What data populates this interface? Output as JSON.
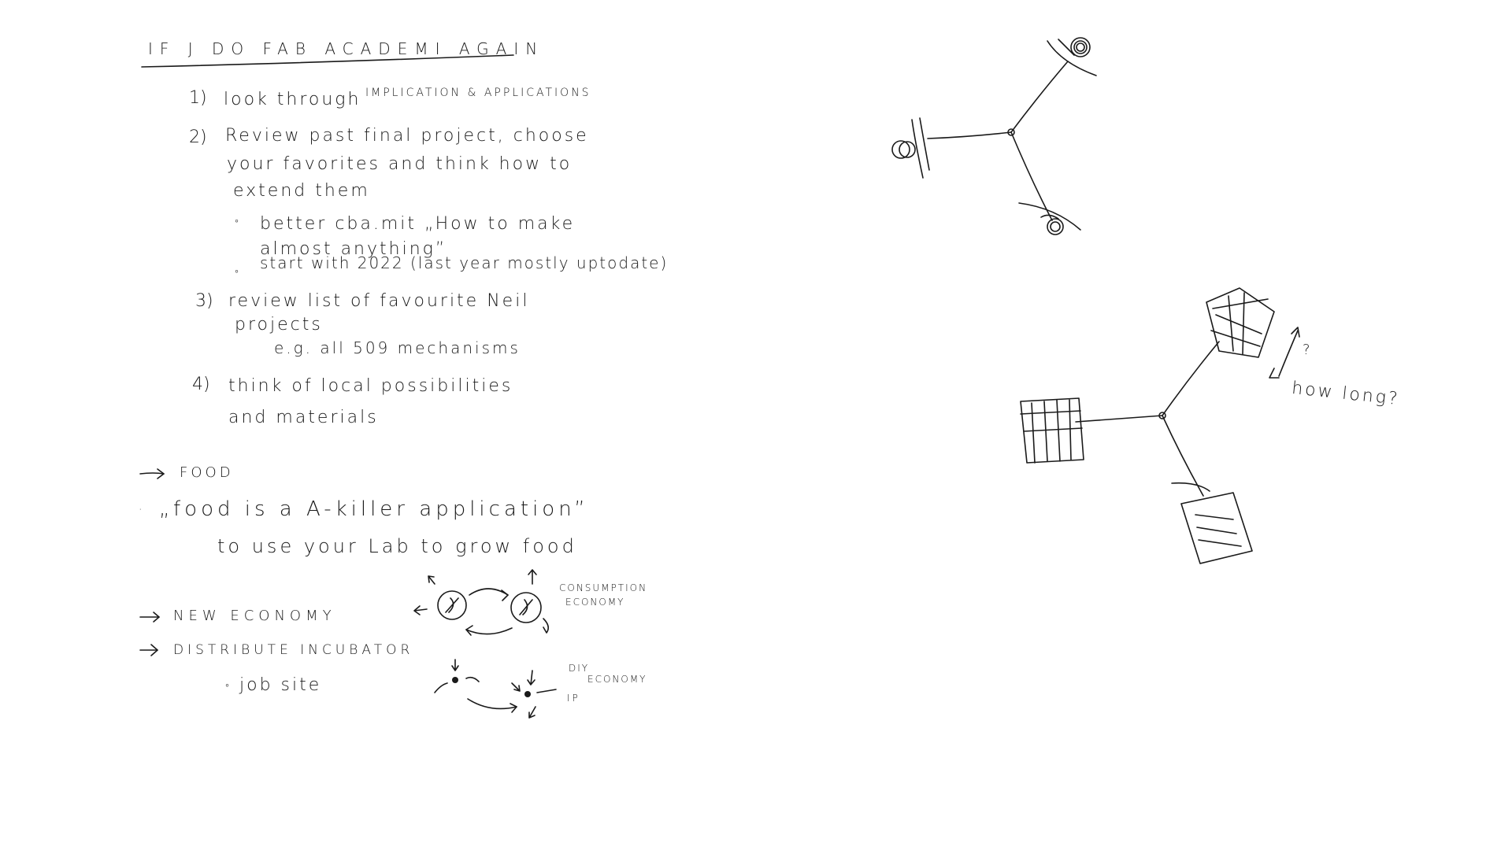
{
  "notes": {
    "title": "IF J DO FAB ACADEMI AGAIN",
    "item1_num": "1)",
    "item1_text": "look through",
    "item1_caps": "IMPLICATION & APPLICATIONS",
    "item2_num": "2)",
    "item2_line1": "Review past final project, choose",
    "item2_line2": "your favorites and think how to",
    "item2_line3": "extend them",
    "bullet1_line1": "better cba.mit „How to make",
    "bullet1_line2": "almost anything”",
    "bullet2": "start with 2022 (last year mostly uptodate)",
    "item3_num": "3)",
    "item3_line1": "review list of favourite Neil",
    "item3_line2": "projects",
    "item3_line3": "e.g. all 509 mechanisms",
    "item4_num": "4)",
    "item4_line1": "think of local possibilities",
    "item4_line2": "and materials",
    "food_label": "FOOD",
    "food_quote": "„food is a A-killer application”",
    "food_line2": "to use your Lab to grow food",
    "new_economy": "NEW ECONOMY",
    "distribute": "DISTRIBUTE INCUBATOR",
    "job_site": "job site",
    "consumption_line1": "CONSUMPTION",
    "consumption_line2": "ECONOMY",
    "diy_line1": "DIY",
    "diy_line2": "ECONOMY",
    "ip_label": "IP"
  },
  "sketch": {
    "question_mark": "?",
    "how_long": "how long?"
  }
}
